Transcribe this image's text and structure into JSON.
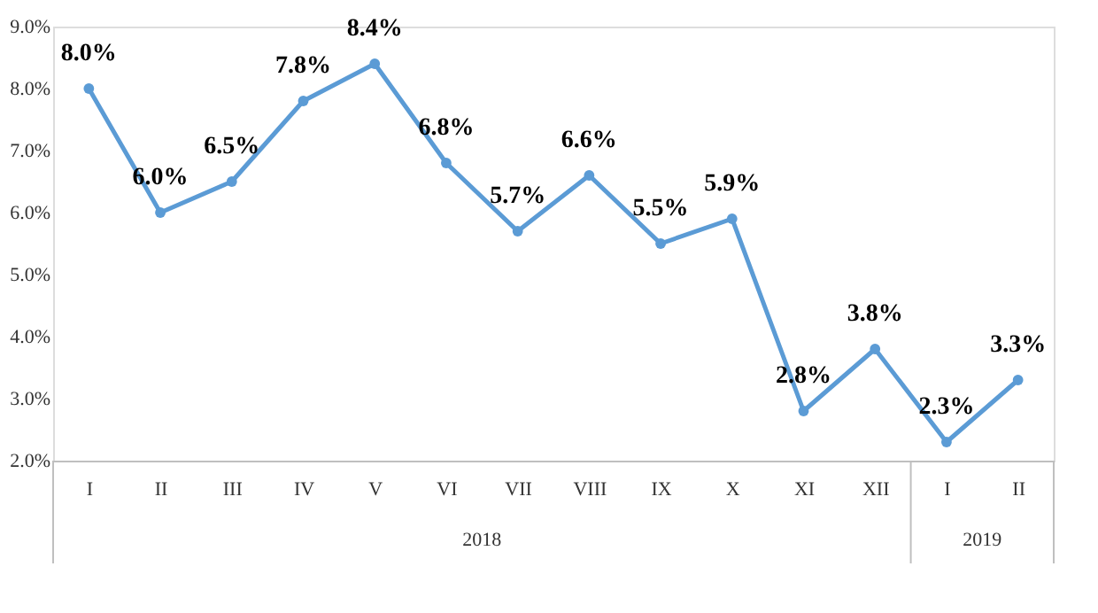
{
  "chart_data": {
    "type": "line",
    "categories": [
      "I",
      "II",
      "III",
      "IV",
      "V",
      "VI",
      "VII",
      "VIII",
      "IX",
      "X",
      "XI",
      "XII",
      "I",
      "II"
    ],
    "series": [
      {
        "color": "#5b9bd5",
        "values": [
          8.0,
          6.0,
          6.5,
          7.8,
          8.4,
          6.8,
          5.7,
          6.6,
          5.5,
          5.9,
          2.8,
          3.8,
          2.3,
          3.3
        ],
        "value_labels": [
          "8.0%",
          "6.0%",
          "6.5%",
          "7.8%",
          "8.4%",
          "6.8%",
          "5.7%",
          "6.6%",
          "5.5%",
          "5.9%",
          "2.8%",
          "3.8%",
          "2.3%",
          "3.3%"
        ]
      }
    ],
    "ylim": [
      2,
      9
    ],
    "yticks": [
      {
        "value": 2,
        "label": "2.0%"
      },
      {
        "value": 3,
        "label": "3.0%"
      },
      {
        "value": 4,
        "label": "4.0%"
      },
      {
        "value": 5,
        "label": "5.0%"
      },
      {
        "value": 6,
        "label": "6.0%"
      },
      {
        "value": 7,
        "label": "7.0%"
      },
      {
        "value": 8,
        "label": "8.0%"
      },
      {
        "value": 9,
        "label": "9.0%"
      }
    ],
    "annotations": [
      "2018",
      "2019"
    ],
    "marker": "circle",
    "line_style": "solid",
    "grid": false
  }
}
